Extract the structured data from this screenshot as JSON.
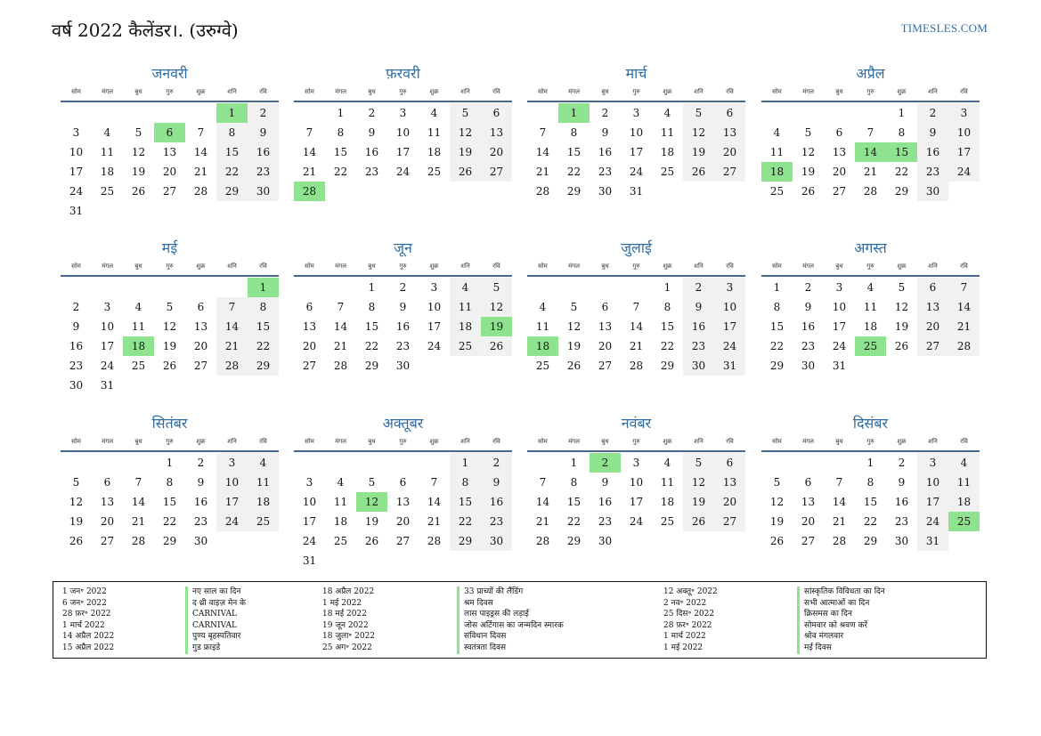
{
  "header": {
    "title": "वर्ष 2022 कैलेंडर।. (उरुग्वे)",
    "site": "TIMESLES.COM"
  },
  "weekdays": [
    "सोम",
    "मंगल",
    "बुध",
    "गुरु",
    "शुक्र",
    "शनि",
    "रवि"
  ],
  "colors": {
    "accent": "#2e6da4",
    "holiday": "#8fe38f",
    "weekend": "#f1f1f1"
  },
  "months": [
    {
      "name": "जनवरी",
      "offset": 5,
      "days": 31,
      "holidays": [
        1,
        6
      ]
    },
    {
      "name": "फ़रवरी",
      "offset": 1,
      "days": 28,
      "holidays": [
        28
      ]
    },
    {
      "name": "मार्च",
      "offset": 1,
      "days": 31,
      "holidays": [
        1
      ]
    },
    {
      "name": "अप्रैल",
      "offset": 4,
      "days": 30,
      "holidays": [
        14,
        15,
        18
      ]
    },
    {
      "name": "मई",
      "offset": 6,
      "days": 31,
      "holidays": [
        1,
        18
      ]
    },
    {
      "name": "जून",
      "offset": 2,
      "days": 30,
      "holidays": [
        19
      ]
    },
    {
      "name": "जुलाई",
      "offset": 4,
      "days": 31,
      "holidays": [
        18
      ]
    },
    {
      "name": "अगस्त",
      "offset": 0,
      "days": 31,
      "holidays": [
        25
      ]
    },
    {
      "name": "सितंबर",
      "offset": 3,
      "days": 30,
      "holidays": []
    },
    {
      "name": "अक्तूबर",
      "offset": 5,
      "days": 31,
      "holidays": [
        12
      ]
    },
    {
      "name": "नवंबर",
      "offset": 1,
      "days": 30,
      "holidays": [
        2
      ]
    },
    {
      "name": "दिसंबर",
      "offset": 3,
      "days": 31,
      "holidays": [
        25
      ]
    }
  ],
  "legend": [
    [
      {
        "date": "1 जन॰ 2022",
        "name": "नए साल का दिन"
      },
      {
        "date": "6 जन॰ 2022",
        "name": "द थ्री वाइज़ मेन के"
      },
      {
        "date": "28 फ़र॰ 2022",
        "name": "CARNIVAL"
      },
      {
        "date": "1 मार्च 2022",
        "name": "CARNIVAL"
      },
      {
        "date": "14 अप्रैल 2022",
        "name": "पुण्य बृहस्पतिवार"
      },
      {
        "date": "15 अप्रैल 2022",
        "name": "गुड फ्राइडे"
      }
    ],
    [
      {
        "date": "18 अप्रैल 2022",
        "name": "33 प्राच्यों की लैंडिंग"
      },
      {
        "date": "1 मई 2022",
        "name": "श्रम दिवस"
      },
      {
        "date": "18 मई 2022",
        "name": "लास पाइड्रस की लड़ाई"
      },
      {
        "date": "19 जून 2022",
        "name": "जोस अर्टिगास का जन्मदिन स्मारक"
      },
      {
        "date": "18 जुला॰ 2022",
        "name": "संविधान दिवस"
      },
      {
        "date": "25 अग॰ 2022",
        "name": "स्वतंत्रता दिवस"
      }
    ],
    [
      {
        "date": "12 अक्तू॰ 2022",
        "name": "सांस्कृतिक विविधता का दिन"
      },
      {
        "date": "2 नव॰ 2022",
        "name": "सभी आत्माओं का दिन"
      },
      {
        "date": "25 दिस॰ 2022",
        "name": "क्रिसमस का दिन"
      },
      {
        "date": "28 फ़र॰ 2022",
        "name": "सोमवार को श्रवण करें"
      },
      {
        "date": "1 मार्च 2022",
        "name": "श्रोव मंगलवार"
      },
      {
        "date": "1 मई 2022",
        "name": "मई दिवस"
      }
    ]
  ]
}
